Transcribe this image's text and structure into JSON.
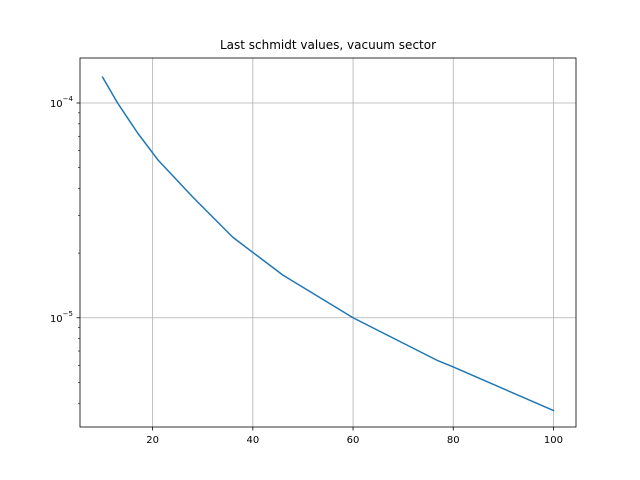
{
  "chart_data": {
    "type": "line",
    "title": "Last schmidt values, vacuum sector",
    "xlabel": "",
    "ylabel": "",
    "xlim": [
      5.5,
      104.5
    ],
    "ylim": [
      3.1e-06,
      0.000162
    ],
    "yscale": "log",
    "grid": true,
    "x_ticks": [
      20,
      40,
      60,
      80,
      100
    ],
    "x_tick_labels": [
      "20",
      "40",
      "60",
      "80",
      "100"
    ],
    "y_major_ticks": [
      0.0001,
      1e-05
    ],
    "y_tick_labels": [
      {
        "base": "10",
        "exp": "−4"
      },
      {
        "base": "10",
        "exp": "−5"
      }
    ],
    "series": [
      {
        "color": "#1f77b4",
        "x": [
          10,
          13,
          17,
          21,
          28,
          36,
          46,
          60,
          77,
          80,
          100
        ],
        "y": [
          0.000132,
          0.0001,
          7.25e-05,
          5.45e-05,
          3.65e-05,
          2.37e-05,
          1.58e-05,
          1e-05,
          6.3e-06,
          5.9e-06,
          3.7e-06
        ]
      }
    ]
  }
}
